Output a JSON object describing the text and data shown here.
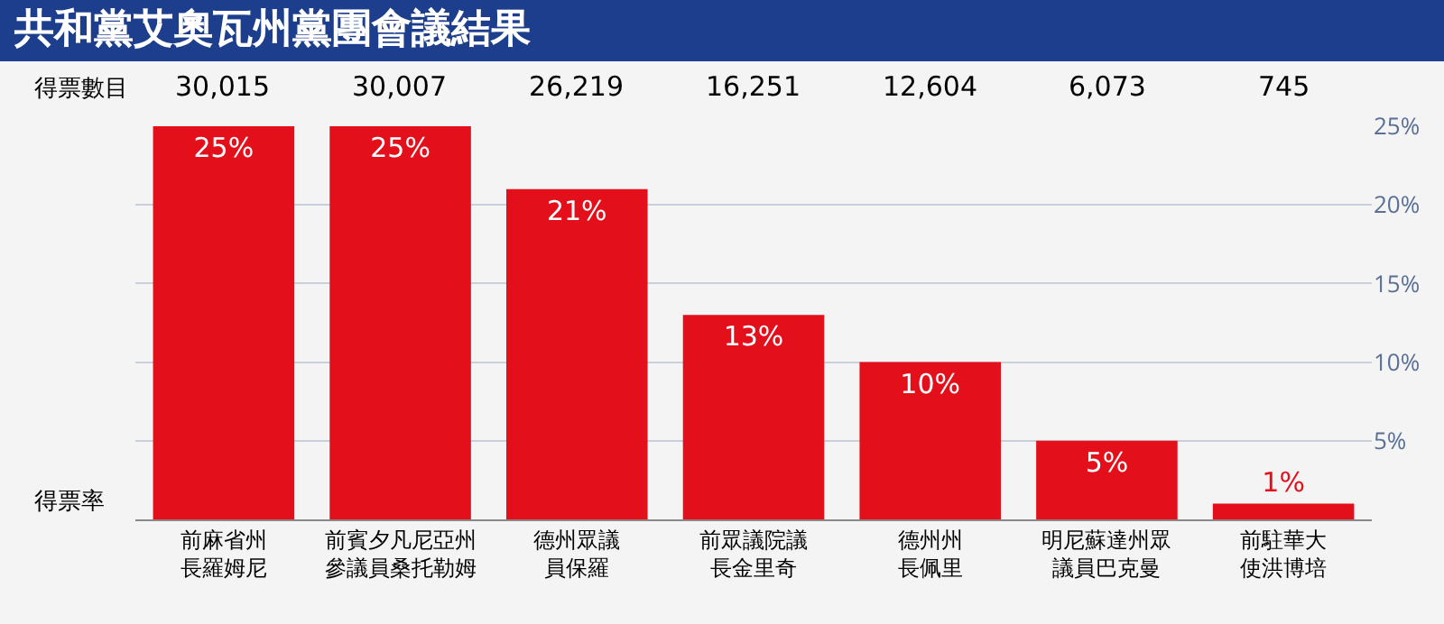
{
  "chart_data": {
    "type": "bar",
    "title": "共和黨艾奧瓦州黨團會議結果",
    "categories": [
      "前麻省州長羅姆尼",
      "前賓夕凡尼亞州參議員桑托勒姆",
      "德州眾議員保羅",
      "前眾議院議長金里奇",
      "德州州長佩里",
      "明尼蘇達州眾議員巴克曼",
      "前駐華大使洪博培"
    ],
    "values": [
      25,
      25,
      21,
      13,
      10,
      5,
      1
    ],
    "value_labels": [
      "25%",
      "25%",
      "21%",
      "13%",
      "10%",
      "5%",
      "1%"
    ],
    "color": "#e3101b",
    "ylim": [
      0,
      25
    ],
    "yticks": [
      {
        "value": 5,
        "label": "5%"
      },
      {
        "value": 10,
        "label": "10%"
      },
      {
        "value": 15,
        "label": "15%"
      },
      {
        "value": 20,
        "label": "20%"
      },
      {
        "value": 25,
        "label": "25%"
      }
    ],
    "grid": "y",
    "annotations": [
      "得票數目",
      "得票率",
      "30,015",
      "30,007",
      "26,219",
      "16,251",
      "12,604",
      "6,073",
      "745"
    ]
  }
}
